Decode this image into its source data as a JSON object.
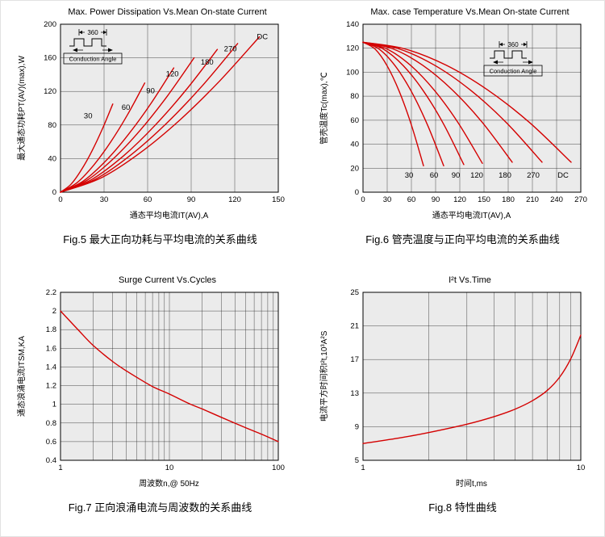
{
  "page": {
    "background": "#ffffff",
    "curve_color": "#d40000",
    "plot_bg": "#ebebeb",
    "grid_color": "#2b2b2b"
  },
  "chart_data": [
    {
      "id": "fig5",
      "type": "line",
      "title": "Max. Power Dissipation Vs.Mean On-state Current",
      "xlabel": "通态平均电流IT(AV),A",
      "ylabel": "最大通态功耗PT(AV)(max),W",
      "xscale": "linear",
      "xlim": [
        0,
        150
      ],
      "ylim": [
        0,
        200
      ],
      "xticks": [
        0,
        30,
        60,
        90,
        120,
        150
      ],
      "yticks": [
        0,
        40,
        80,
        120,
        160,
        200
      ],
      "grid": true,
      "legend": "none",
      "series": [
        {
          "name": "30",
          "points": [
            [
              0,
              0
            ],
            [
              7.2,
              9.4
            ],
            [
              14.4,
              26.6
            ],
            [
              21.6,
              48.8
            ],
            [
              28.8,
              75.1
            ],
            [
              36,
              105
            ]
          ]
        },
        {
          "name": "60",
          "points": [
            [
              0,
              0
            ],
            [
              11.6,
              11.6
            ],
            [
              23.2,
              32.9
            ],
            [
              34.8,
              60.4
            ],
            [
              46.4,
              93
            ],
            [
              58,
              130
            ]
          ]
        },
        {
          "name": "90",
          "points": [
            [
              0,
              0
            ],
            [
              15.6,
              13.2
            ],
            [
              31.2,
              37.4
            ],
            [
              46.8,
              68.8
            ],
            [
              62.4,
              105.9
            ],
            [
              78,
              148
            ]
          ]
        },
        {
          "name": "120",
          "points": [
            [
              0,
              0
            ],
            [
              18.4,
              14.3
            ],
            [
              36.8,
              40.5
            ],
            [
              55.2,
              74.4
            ],
            [
              73.6,
              114.5
            ],
            [
              92,
              160
            ]
          ]
        },
        {
          "name": "180",
          "points": [
            [
              0,
              0
            ],
            [
              21.6,
              15.2
            ],
            [
              43.2,
              43
            ],
            [
              64.8,
              79
            ],
            [
              86.4,
              121.6
            ],
            [
              108,
              170
            ]
          ]
        },
        {
          "name": "270",
          "points": [
            [
              0,
              0
            ],
            [
              24.4,
              15.8
            ],
            [
              48.8,
              44.8
            ],
            [
              73.2,
              82.3
            ],
            [
              97.6,
              126.6
            ],
            [
              122,
              177
            ]
          ]
        },
        {
          "name": "DC",
          "points": [
            [
              0,
              0
            ],
            [
              27.4,
              16.5
            ],
            [
              54.8,
              46.8
            ],
            [
              82.2,
              86
            ],
            [
              109.6,
              132.4
            ],
            [
              137,
              185
            ]
          ]
        }
      ],
      "series_labels": [
        {
          "text": "30",
          "x": 19,
          "y": 88
        },
        {
          "text": "60",
          "x": 45,
          "y": 98
        },
        {
          "text": "90",
          "x": 62,
          "y": 118
        },
        {
          "text": "120",
          "x": 77,
          "y": 138
        },
        {
          "text": "180",
          "x": 101,
          "y": 152
        },
        {
          "text": "270",
          "x": 117,
          "y": 168
        },
        {
          "text": "DC",
          "x": 139,
          "y": 182
        }
      ],
      "inset": {
        "pulse_label": "360",
        "box_label": "Conduction Angle",
        "fx": 0.04,
        "fy": 0.03
      },
      "caption": "Fig.5 最大正向功耗与平均电流的关系曲线"
    },
    {
      "id": "fig6",
      "type": "line",
      "title": "Max. case Temperature Vs.Mean On-state Current",
      "xlabel": "通态平均电流IT(AV),A",
      "ylabel": "管壳温度Tc(max),℃",
      "xscale": "linear",
      "xlim": [
        0,
        270
      ],
      "ylim": [
        0,
        140
      ],
      "xticks": [
        0,
        30,
        60,
        90,
        120,
        150,
        180,
        210,
        240,
        270
      ],
      "yticks": [
        0,
        20,
        40,
        60,
        80,
        100,
        120,
        140
      ],
      "grid": true,
      "legend": "none",
      "series": [
        {
          "name": "30",
          "points": [
            [
              0,
              125
            ],
            [
              15,
              119.3
            ],
            [
              30,
              105.2
            ],
            [
              45,
              83.9
            ],
            [
              60,
              56
            ],
            [
              75,
              22
            ]
          ]
        },
        {
          "name": "60",
          "points": [
            [
              0,
              125
            ],
            [
              20,
              119.3
            ],
            [
              40,
              105.2
            ],
            [
              60,
              83.9
            ],
            [
              80,
              56
            ],
            [
              100,
              22
            ]
          ]
        },
        {
          "name": "90",
          "points": [
            [
              0,
              125
            ],
            [
              25,
              119.4
            ],
            [
              50,
              105.4
            ],
            [
              75,
              84.3
            ],
            [
              100,
              56.7
            ],
            [
              125,
              23
            ]
          ]
        },
        {
          "name": "120",
          "points": [
            [
              0,
              125
            ],
            [
              29.6,
              119.4
            ],
            [
              59.2,
              105.6
            ],
            [
              88.8,
              84.7
            ],
            [
              118.4,
              57.4
            ],
            [
              148,
              24
            ]
          ]
        },
        {
          "name": "180",
          "points": [
            [
              0,
              125
            ],
            [
              37,
              119.5
            ],
            [
              74,
              105.8
            ],
            [
              111,
              85.1
            ],
            [
              148,
              58.1
            ],
            [
              185,
              25
            ]
          ]
        },
        {
          "name": "270",
          "points": [
            [
              0,
              125
            ],
            [
              44.4,
              119.5
            ],
            [
              88.8,
              105.8
            ],
            [
              133.2,
              85.1
            ],
            [
              177.6,
              58.1
            ],
            [
              222,
              25
            ]
          ]
        },
        {
          "name": "DC",
          "points": [
            [
              0,
              125
            ],
            [
              51.6,
              119.5
            ],
            [
              103.2,
              105.8
            ],
            [
              154.8,
              85.1
            ],
            [
              206.4,
              58.1
            ],
            [
              258,
              25
            ]
          ]
        }
      ],
      "series_labels": [
        {
          "text": "30",
          "x": 57,
          "y": 12
        },
        {
          "text": "60",
          "x": 88,
          "y": 12
        },
        {
          "text": "90",
          "x": 115,
          "y": 12
        },
        {
          "text": "120",
          "x": 141,
          "y": 12
        },
        {
          "text": "180",
          "x": 176,
          "y": 12
        },
        {
          "text": "270",
          "x": 211,
          "y": 12
        },
        {
          "text": "DC",
          "x": 248,
          "y": 12
        }
      ],
      "inset": {
        "pulse_label": "360",
        "box_label": "Conduction Angle",
        "fx": 0.58,
        "fy": 0.1
      },
      "caption": "Fig.6 管壳温度与正向平均电流的关系曲线"
    },
    {
      "id": "fig7",
      "type": "line",
      "title": "Surge Current Vs.Cycles",
      "xlabel": "周波数n,@ 50Hz",
      "ylabel": "通态浪涌电流ITSM,KA",
      "xscale": "log",
      "xlim": [
        1,
        100
      ],
      "ylim": [
        0.4,
        2.2
      ],
      "xticks": [
        1,
        10,
        100
      ],
      "yticks": [
        0.4,
        0.6,
        0.8,
        1,
        1.2,
        1.4,
        1.6,
        1.8,
        2,
        2.2
      ],
      "grid": true,
      "legend": "none",
      "series": [
        {
          "name": "surge-current",
          "points": [
            [
              1,
              2.0
            ],
            [
              1.5,
              1.78
            ],
            [
              2,
              1.63
            ],
            [
              3,
              1.46
            ],
            [
              4,
              1.36
            ],
            [
              5,
              1.29
            ],
            [
              7,
              1.19
            ],
            [
              10,
              1.11
            ],
            [
              15,
              1.01
            ],
            [
              20,
              0.95
            ],
            [
              30,
              0.86
            ],
            [
              50,
              0.75
            ],
            [
              70,
              0.68
            ],
            [
              100,
              0.6
            ]
          ]
        }
      ],
      "series_labels": [],
      "caption": "Fig.7 正向浪涌电流与周波数的关系曲线"
    },
    {
      "id": "fig8",
      "type": "line",
      "title": "I²t  Vs.Time",
      "xlabel": "时间t,ms",
      "ylabel": "电流平方时间积I²t,10³A²S",
      "xscale": "log",
      "xlim": [
        1,
        10
      ],
      "ylim": [
        5,
        25
      ],
      "xticks": [
        1,
        10
      ],
      "yticks": [
        5,
        9,
        13,
        17,
        21,
        25
      ],
      "grid": true,
      "legend": "none",
      "series": [
        {
          "name": "i2t",
          "points": [
            [
              1,
              7
            ],
            [
              1.5,
              7.7
            ],
            [
              2,
              8.3
            ],
            [
              3,
              9.3
            ],
            [
              4,
              10.2
            ],
            [
              5,
              11.1
            ],
            [
              6,
              12.1
            ],
            [
              7,
              13.3
            ],
            [
              8,
              14.9
            ],
            [
              9,
              17.1
            ],
            [
              10,
              19.9
            ]
          ]
        }
      ],
      "series_labels": [],
      "caption": "Fig.8 特性曲线"
    }
  ]
}
